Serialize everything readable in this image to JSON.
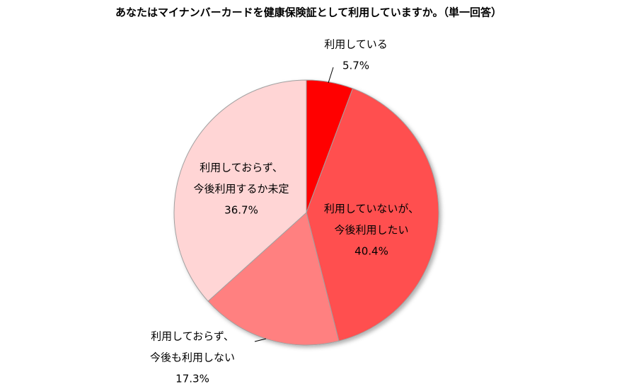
{
  "chart_data": {
    "type": "pie",
    "title": "あなたはマイナンバーカードを健康保険証として利用していますか。（単一回答）",
    "categories": [
      [
        "利用している"
      ],
      [
        "利用していないが、",
        "今後利用したい"
      ],
      [
        "利用しておらず、",
        "今後も利用しない"
      ],
      [
        "利用しておらず、",
        "今後利用するか未定"
      ]
    ],
    "values": [
      5.7,
      40.4,
      17.3,
      36.7
    ],
    "value_labels": [
      "5.7%",
      "40.4%",
      "17.3%",
      "36.7%"
    ],
    "colors": [
      "#ff0000",
      "#ff5050",
      "#ff8080",
      "#ffd5d5"
    ]
  }
}
